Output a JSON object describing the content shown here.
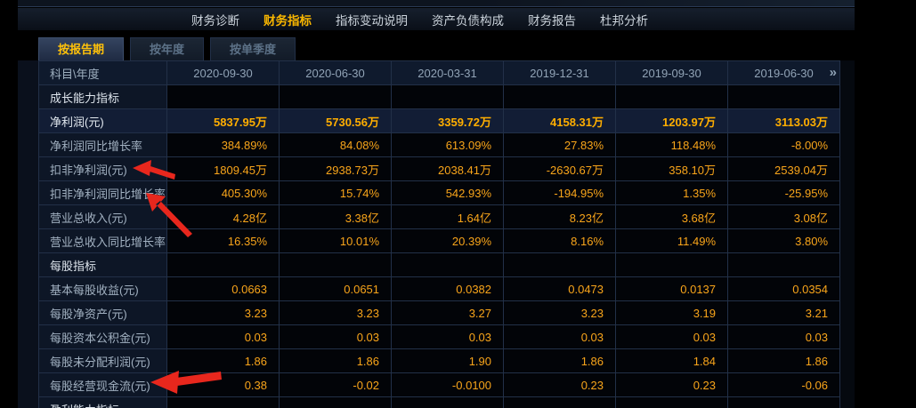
{
  "nav": {
    "items": [
      {
        "label": "财务诊断",
        "active": false
      },
      {
        "label": "财务指标",
        "active": true
      },
      {
        "label": "指标变动说明",
        "active": false
      },
      {
        "label": "资产负债构成",
        "active": false
      },
      {
        "label": "财务报告",
        "active": false
      },
      {
        "label": "杜邦分析",
        "active": false
      }
    ]
  },
  "tabs": {
    "items": [
      {
        "label": "按报告期",
        "active": true
      },
      {
        "label": "按年度",
        "active": false
      },
      {
        "label": "按单季度",
        "active": false
      }
    ]
  },
  "table": {
    "corner_label": "科目\\年度",
    "periods": [
      "2020-09-30",
      "2020-06-30",
      "2020-03-31",
      "2019-12-31",
      "2019-09-30",
      "2019-06-30"
    ],
    "next_icon": "»",
    "rows": [
      {
        "type": "section",
        "label": "成长能力指标"
      },
      {
        "type": "data",
        "label": "净利润(元)",
        "highlight": true,
        "values": [
          "5837.95万",
          "5730.56万",
          "3359.72万",
          "4158.31万",
          "1203.97万",
          "3113.03万"
        ]
      },
      {
        "type": "data",
        "label": "净利润同比增长率",
        "values": [
          "384.89%",
          "84.08%",
          "613.09%",
          "27.83%",
          "118.48%",
          "-8.00%"
        ]
      },
      {
        "type": "data",
        "label": "扣非净利润(元)",
        "values": [
          "1809.45万",
          "2938.73万",
          "2038.41万",
          "-2630.67万",
          "358.10万",
          "2539.04万"
        ]
      },
      {
        "type": "data",
        "label": "扣非净利润同比增长率",
        "values": [
          "405.30%",
          "15.74%",
          "542.93%",
          "-194.95%",
          "1.35%",
          "-25.95%"
        ]
      },
      {
        "type": "data",
        "label": "营业总收入(元)",
        "values": [
          "4.28亿",
          "3.38亿",
          "1.64亿",
          "8.23亿",
          "3.68亿",
          "3.08亿"
        ]
      },
      {
        "type": "data",
        "label": "营业总收入同比增长率",
        "values": [
          "16.35%",
          "10.01%",
          "20.39%",
          "8.16%",
          "11.49%",
          "3.80%"
        ]
      },
      {
        "type": "section",
        "label": "每股指标"
      },
      {
        "type": "data",
        "label": "基本每股收益(元)",
        "values": [
          "0.0663",
          "0.0651",
          "0.0382",
          "0.0473",
          "0.0137",
          "0.0354"
        ]
      },
      {
        "type": "data",
        "label": "每股净资产(元)",
        "values": [
          "3.23",
          "3.23",
          "3.27",
          "3.23",
          "3.19",
          "3.21"
        ]
      },
      {
        "type": "data",
        "label": "每股资本公积金(元)",
        "values": [
          "0.03",
          "0.03",
          "0.03",
          "0.03",
          "0.03",
          "0.03"
        ]
      },
      {
        "type": "data",
        "label": "每股未分配利润(元)",
        "values": [
          "1.86",
          "1.86",
          "1.90",
          "1.86",
          "1.84",
          "1.86"
        ]
      },
      {
        "type": "data",
        "label": "每股经营现金流(元)",
        "values": [
          "0.38",
          "-0.02",
          "-0.0100",
          "0.23",
          "0.23",
          "-0.06"
        ]
      },
      {
        "type": "section",
        "label": "盈利能力指标",
        "partial": true
      }
    ]
  },
  "annotations": {
    "arrow_color": "#e8271d",
    "arrow_targets": [
      "扣非净利润(元)",
      "扣非净利润同比增长率",
      "每股经营现金流(元)"
    ]
  },
  "colors": {
    "value_text": "#f9a51a",
    "highlight_value_text": "#ffae00",
    "active_nav_text": "#f7b500",
    "active_tab_text": "#ffc10a",
    "table_border": "#223048",
    "label_cell_bg": "#0d1626",
    "highlight_row_bg": "#121d35"
  }
}
